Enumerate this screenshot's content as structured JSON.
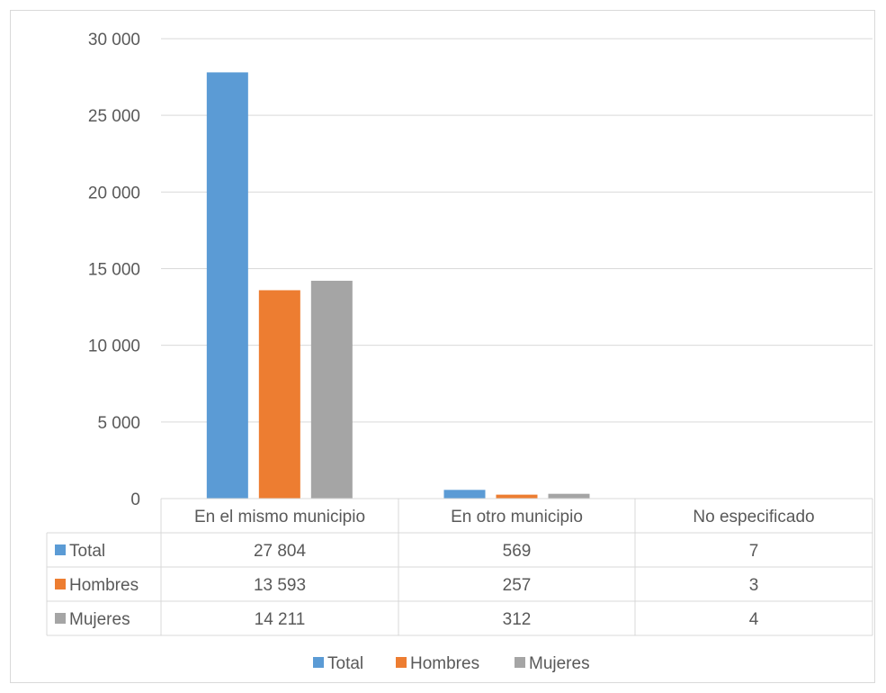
{
  "chart_data": {
    "type": "bar",
    "categories": [
      "En el mismo municipio",
      "En otro municipio",
      "No especificado"
    ],
    "series": [
      {
        "name": "Total",
        "values": [
          27804,
          569,
          7
        ],
        "labels": [
          "27 804",
          "569",
          "7"
        ],
        "color": "#5b9bd5"
      },
      {
        "name": "Hombres",
        "values": [
          13593,
          257,
          3
        ],
        "labels": [
          "13 593",
          "257",
          "3"
        ],
        "color": "#ed7d31"
      },
      {
        "name": "Mujeres",
        "values": [
          14211,
          312,
          4
        ],
        "labels": [
          "14 211",
          "312",
          "4"
        ],
        "color": "#a5a5a5"
      }
    ],
    "y_ticks": [
      "0",
      "5 000",
      "10 000",
      "15 000",
      "20 000",
      "25 000",
      "30 000"
    ],
    "ylim": [
      0,
      30000
    ],
    "grid": true,
    "data_table": true,
    "legend_position": "bottom"
  }
}
